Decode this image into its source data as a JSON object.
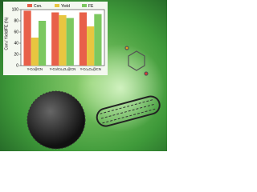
{
  "chart_data": {
    "type": "bar",
    "y_label": "Con./ Yield/FE (%)",
    "categories": [
      "Y-Co@CN",
      "Y-Co/Co₃O₄@CN",
      "Y-Co₃O₄@CN"
    ],
    "series": [
      {
        "name": "Con.",
        "color": "#e8604a",
        "values": [
          98,
          95,
          95
        ]
      },
      {
        "name": "Yield",
        "color": "#e8c640",
        "values": [
          50,
          90,
          70
        ]
      },
      {
        "name": "FE",
        "color": "#7cc860",
        "values": [
          80,
          85,
          92
        ]
      }
    ],
    "ylim": [
      0,
      100
    ],
    "yticks": [
      0,
      20,
      40,
      60,
      80,
      100
    ],
    "legend": "top"
  }
}
